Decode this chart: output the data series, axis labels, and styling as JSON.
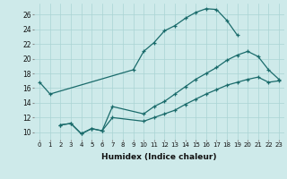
{
  "xlabel": "Humidex (Indice chaleur)",
  "bg_color": "#ceeaea",
  "grid_color": "#aad4d4",
  "line_color": "#1a6b6b",
  "xlim": [
    -0.5,
    23.5
  ],
  "ylim": [
    9,
    27.5
  ],
  "xticks": [
    0,
    1,
    2,
    3,
    4,
    5,
    6,
    7,
    8,
    9,
    10,
    11,
    12,
    13,
    14,
    15,
    16,
    17,
    18,
    19,
    20,
    21,
    22,
    23
  ],
  "yticks": [
    10,
    12,
    14,
    16,
    18,
    20,
    22,
    24,
    26
  ],
  "line1_x": [
    0,
    1,
    9,
    10,
    11,
    12,
    13,
    14,
    15,
    16,
    17,
    18,
    19
  ],
  "line1_y": [
    16.8,
    15.2,
    18.5,
    21.0,
    22.2,
    23.8,
    24.5,
    25.5,
    26.3,
    26.8,
    26.7,
    25.2,
    23.2
  ],
  "line2_x": [
    2,
    3,
    4,
    5,
    6,
    7,
    10,
    11,
    12,
    13,
    14,
    15,
    16,
    17,
    18,
    19,
    20,
    21,
    22,
    23
  ],
  "line2_y": [
    11.0,
    11.2,
    9.8,
    10.5,
    10.2,
    13.5,
    12.5,
    13.5,
    14.2,
    15.2,
    16.2,
    17.2,
    18.0,
    18.8,
    19.8,
    20.5,
    21.0,
    20.3,
    18.5,
    17.2
  ],
  "line3_x": [
    2,
    3,
    4,
    5,
    6,
    7,
    10,
    11,
    12,
    13,
    14,
    15,
    16,
    17,
    18,
    19,
    20,
    21,
    22,
    23
  ],
  "line3_y": [
    11.0,
    11.2,
    9.8,
    10.5,
    10.2,
    12.0,
    11.5,
    12.0,
    12.5,
    13.0,
    13.8,
    14.5,
    15.2,
    15.8,
    16.4,
    16.8,
    17.2,
    17.5,
    16.8,
    17.0
  ]
}
